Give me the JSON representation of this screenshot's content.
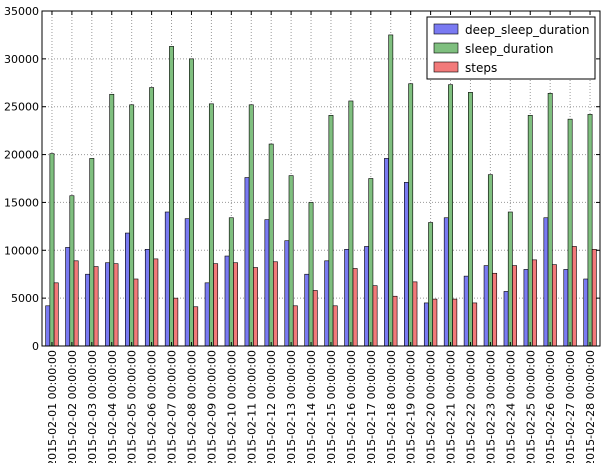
{
  "chart_data": {
    "type": "bar",
    "title": "",
    "xlabel": "",
    "ylabel": "",
    "ylim": [
      0,
      35000
    ],
    "yticks": [
      0,
      5000,
      10000,
      15000,
      20000,
      25000,
      30000,
      35000
    ],
    "grid": true,
    "legend_position": "top-right",
    "categories": [
      "2015-02-01 00:00:00",
      "2015-02-02 00:00:00",
      "2015-02-03 00:00:00",
      "2015-02-04 00:00:00",
      "2015-02-05 00:00:00",
      "2015-02-06 00:00:00",
      "2015-02-07 00:00:00",
      "2015-02-08 00:00:00",
      "2015-02-09 00:00:00",
      "2015-02-10 00:00:00",
      "2015-02-11 00:00:00",
      "2015-02-12 00:00:00",
      "2015-02-13 00:00:00",
      "2015-02-14 00:00:00",
      "2015-02-15 00:00:00",
      "2015-02-16 00:00:00",
      "2015-02-17 00:00:00",
      "2015-02-18 00:00:00",
      "2015-02-19 00:00:00",
      "2015-02-20 00:00:00",
      "2015-02-21 00:00:00",
      "2015-02-22 00:00:00",
      "2015-02-23 00:00:00",
      "2015-02-24 00:00:00",
      "2015-02-25 00:00:00",
      "2015-02-26 00:00:00",
      "2015-02-27 00:00:00",
      "2015-02-28 00:00:00"
    ],
    "series": [
      {
        "name": "deep_sleep_duration",
        "color": "#7a7af2",
        "values": [
          4200,
          10300,
          7500,
          8700,
          11800,
          10100,
          14000,
          13300,
          6600,
          9400,
          17600,
          13200,
          11000,
          7500,
          8900,
          10100,
          10400,
          19600,
          17100,
          4500,
          13400,
          7300,
          8400,
          5700,
          8000,
          13400,
          8000,
          7000
        ]
      },
      {
        "name": "sleep_duration",
        "color": "#7fbf7f",
        "values": [
          20100,
          15700,
          19600,
          26300,
          25200,
          27000,
          31300,
          30000,
          25300,
          13400,
          25200,
          21100,
          17800,
          15000,
          24100,
          25600,
          17500,
          32500,
          27400,
          12900,
          27300,
          26500,
          17900,
          14000,
          24100,
          26400,
          23700,
          24200
        ]
      },
      {
        "name": "steps",
        "color": "#f27a7a",
        "values": [
          6600,
          8900,
          8300,
          8600,
          7000,
          9100,
          5000,
          4100,
          8600,
          8700,
          8200,
          8800,
          4200,
          5800,
          4200,
          8100,
          6300,
          5200,
          6700,
          4900,
          4900,
          4500,
          7600,
          8400,
          9000,
          8500,
          10400,
          10100
        ]
      }
    ]
  }
}
